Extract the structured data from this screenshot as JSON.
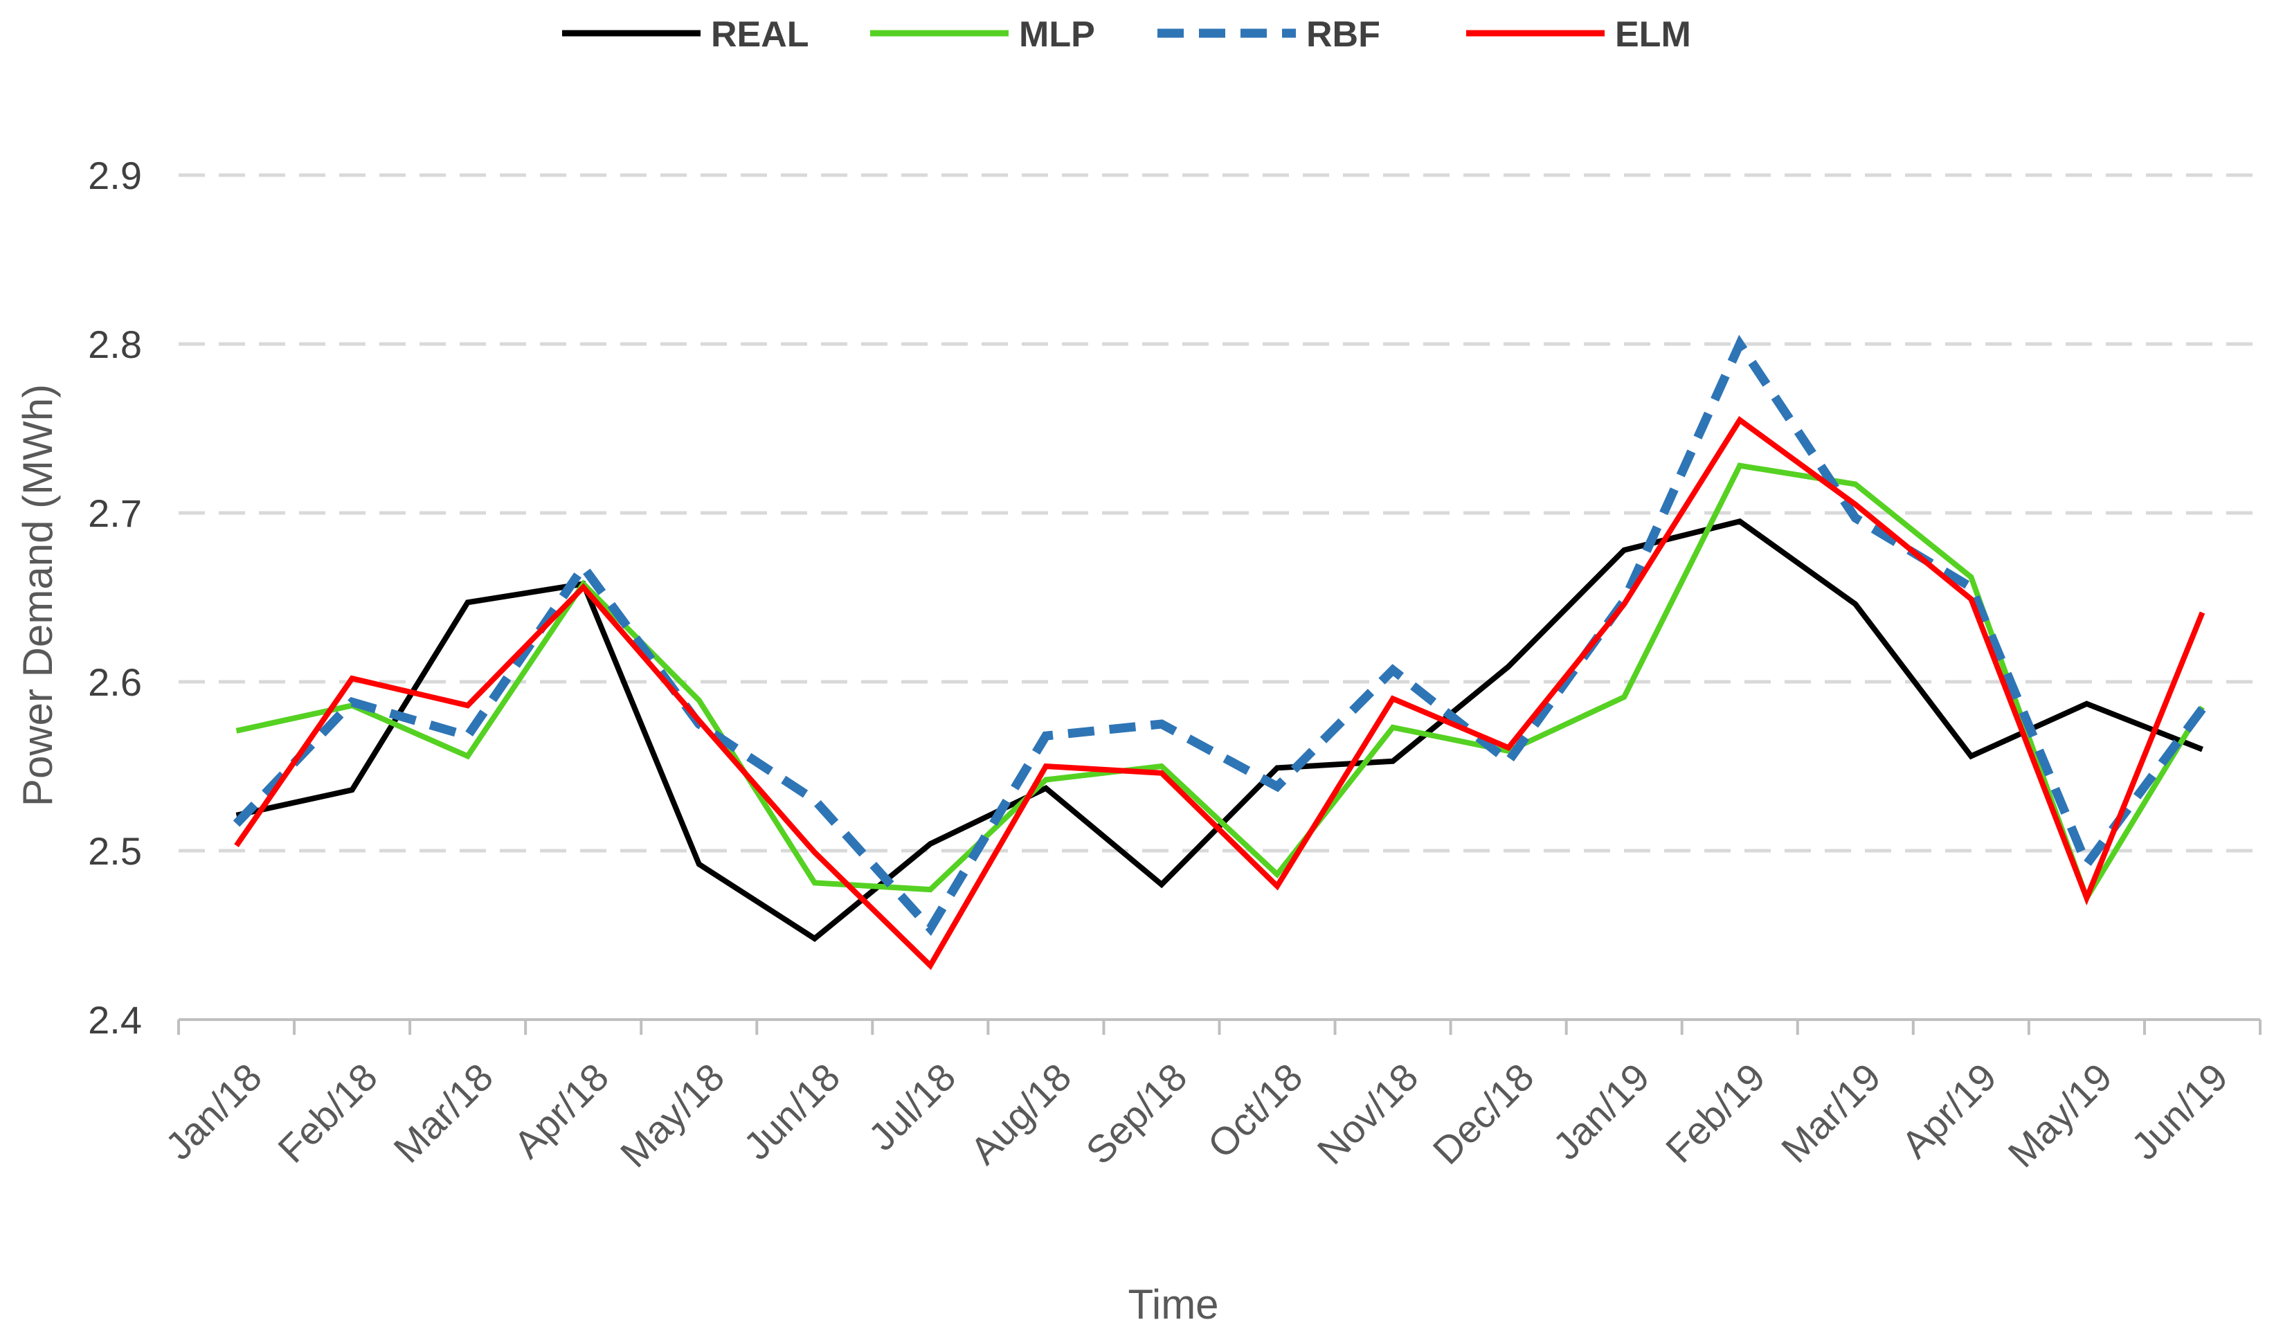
{
  "chart_data": {
    "type": "line",
    "title": "",
    "xlabel": "Time",
    "ylabel": "Power Demand (MWh)",
    "ylim": [
      2.4,
      2.9
    ],
    "ytick_step": 0.1,
    "ytick_labels": [
      "2.4",
      "2.5",
      "2.6",
      "2.7",
      "2.8",
      "2.9"
    ],
    "grid": "horizontal dashed",
    "legend_position": "top",
    "categories": [
      "Jan/18",
      "Feb/18",
      "Mar/18",
      "Apr/18",
      "May/18",
      "Jun/18",
      "Jul/18",
      "Aug/18",
      "Sep/18",
      "Oct/18",
      "Nov/18",
      "Dec/18",
      "Jan/19",
      "Feb/19",
      "Mar/19",
      "Apr/19",
      "May/19",
      "Jun/19"
    ],
    "series": [
      {
        "name": "REAL",
        "color": "#000000",
        "dash": "solid",
        "values": [
          2.521,
          2.536,
          2.647,
          2.658,
          2.492,
          2.448,
          2.504,
          2.537,
          2.48,
          2.549,
          2.553,
          2.609,
          2.678,
          2.695,
          2.646,
          2.556,
          2.587,
          2.56
        ]
      },
      {
        "name": "MLP",
        "color": "#55D122",
        "dash": "solid",
        "values": [
          2.571,
          2.586,
          2.556,
          2.658,
          2.589,
          2.481,
          2.477,
          2.542,
          2.55,
          2.486,
          2.573,
          2.559,
          2.591,
          2.728,
          2.717,
          2.662,
          2.472,
          2.585
        ]
      },
      {
        "name": "RBF",
        "color": "#2E75B6",
        "dash": "dashed",
        "values": [
          2.516,
          2.588,
          2.568,
          2.668,
          2.575,
          2.53,
          2.454,
          2.568,
          2.575,
          2.538,
          2.607,
          2.553,
          2.648,
          2.8,
          2.697,
          2.656,
          2.492,
          2.584
        ]
      },
      {
        "name": "ELM",
        "color": "#FF0000",
        "dash": "solid",
        "values": [
          2.503,
          2.602,
          2.586,
          2.656,
          2.577,
          2.499,
          2.432,
          2.55,
          2.546,
          2.479,
          2.59,
          2.561,
          2.646,
          2.755,
          2.705,
          2.649,
          2.472,
          2.641
        ]
      }
    ]
  }
}
